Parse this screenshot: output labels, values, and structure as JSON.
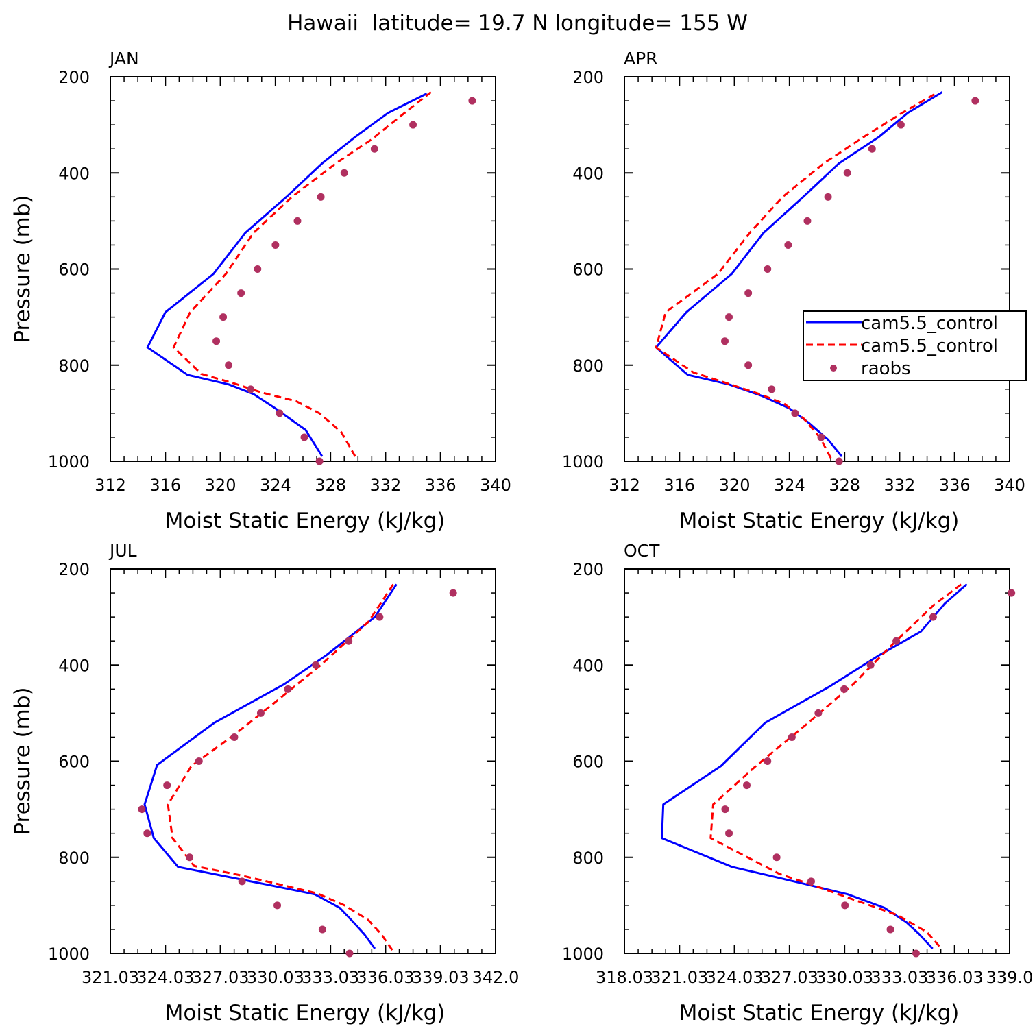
{
  "figure": {
    "title": "Hawaii  latitude= 19.7 N longitude= 155 W"
  },
  "series_styles": [
    {
      "name": "cam5.5_control",
      "color": "#0000ff",
      "style": "solid"
    },
    {
      "name": "cam5.5_control",
      "color": "#ff0000",
      "style": "dashed"
    },
    {
      "name": "raobs",
      "color": "#b03060",
      "style": "markers"
    }
  ],
  "legend": {
    "entries": [
      "cam5.5_control",
      "cam5.5_control",
      "raobs"
    ],
    "panel": "APR",
    "placement": "right-middle"
  },
  "chart_data": [
    {
      "type": "line",
      "panel_title": "JAN",
      "xlabel": "Moist Static Energy (kJ/kg)",
      "ylabel": "Pressure (mb)",
      "xlim": [
        312,
        340
      ],
      "ylim": [
        1000,
        200
      ],
      "y_reversed": true,
      "xticks": [
        312,
        316,
        320,
        324,
        328,
        332,
        336,
        340
      ],
      "xtick_labels": [
        "312",
        "316",
        "320",
        "324",
        "328",
        "332",
        "336",
        "340"
      ],
      "yticks": [
        200,
        400,
        600,
        800,
        1000
      ],
      "ytick_labels": [
        "200",
        "400",
        "600",
        "800",
        "1000"
      ],
      "grid": false,
      "series": [
        {
          "values": [
            [
              327.4,
              990
            ],
            [
              326.2,
              935
            ],
            [
              324,
              890
            ],
            [
              322.4,
              860
            ],
            [
              320.6,
              840
            ],
            [
              317.6,
              820
            ],
            [
              314.7,
              763
            ],
            [
              316,
              690
            ],
            [
              319.5,
              610
            ],
            [
              321.8,
              525
            ],
            [
              324.8,
              450
            ],
            [
              327.4,
              380
            ],
            [
              329.8,
              325
            ],
            [
              332.2,
              275
            ],
            [
              335,
              235
            ]
          ]
        },
        {
          "values": [
            [
              329.8,
              990
            ],
            [
              328.8,
              940
            ],
            [
              327.2,
              900
            ],
            [
              325.5,
              875
            ],
            [
              323,
              857
            ],
            [
              321,
              838
            ],
            [
              318.6,
              818
            ],
            [
              316.6,
              763
            ],
            [
              317.8,
              690
            ],
            [
              320.4,
              610
            ],
            [
              322.4,
              525
            ],
            [
              325.2,
              450
            ],
            [
              328.4,
              380
            ],
            [
              331,
              330
            ],
            [
              333.4,
              275
            ],
            [
              335.3,
              232
            ]
          ]
        },
        {
          "values": [
            [
              327.2,
              1000
            ],
            [
              326.1,
              950
            ],
            [
              324.3,
              900
            ],
            [
              322.2,
              850
            ],
            [
              320.6,
              800
            ],
            [
              319.7,
              750
            ],
            [
              320.2,
              700
            ],
            [
              321.5,
              650
            ],
            [
              322.7,
              600
            ],
            [
              324,
              550
            ],
            [
              325.6,
              500
            ],
            [
              327.3,
              450
            ],
            [
              329,
              400
            ],
            [
              331.2,
              350
            ],
            [
              334,
              300
            ],
            [
              338.3,
              250
            ]
          ]
        }
      ]
    },
    {
      "type": "line",
      "panel_title": "APR",
      "xlabel": "Moist Static Energy (kJ/kg)",
      "ylabel": "",
      "xlim": [
        312,
        340
      ],
      "ylim": [
        1000,
        200
      ],
      "y_reversed": true,
      "xticks": [
        312,
        316,
        320,
        324,
        328,
        332,
        336,
        340
      ],
      "xtick_labels": [
        "312",
        "316",
        "320",
        "324",
        "328",
        "332",
        "336",
        "340"
      ],
      "yticks": [
        200,
        400,
        600,
        800,
        1000
      ],
      "ytick_labels": [
        "200",
        "400",
        "600",
        "800",
        "1000"
      ],
      "grid": false,
      "series": [
        {
          "values": [
            [
              327.8,
              990
            ],
            [
              326.8,
              955
            ],
            [
              325.4,
              920
            ],
            [
              324,
              890
            ],
            [
              322,
              864
            ],
            [
              319.6,
              840
            ],
            [
              316.6,
              820
            ],
            [
              314.3,
              763
            ],
            [
              316.5,
              690
            ],
            [
              319.8,
              610
            ],
            [
              322.1,
              525
            ],
            [
              325,
              450
            ],
            [
              327.6,
              380
            ],
            [
              330.5,
              325
            ],
            [
              332.6,
              275
            ],
            [
              335.1,
              232
            ]
          ]
        },
        {
          "values": [
            [
              327,
              993
            ],
            [
              326.2,
              950
            ],
            [
              325,
              910
            ],
            [
              323.6,
              880
            ],
            [
              321.8,
              860
            ],
            [
              319.5,
              838
            ],
            [
              317,
              815
            ],
            [
              314.3,
              763
            ],
            [
              315,
              690
            ],
            [
              318.8,
              610
            ],
            [
              321.1,
              525
            ],
            [
              323.5,
              450
            ],
            [
              326.5,
              380
            ],
            [
              329.4,
              325
            ],
            [
              332.2,
              275
            ],
            [
              334.8,
              232
            ]
          ]
        },
        {
          "values": [
            [
              327.6,
              1000
            ],
            [
              326.3,
              950
            ],
            [
              324.4,
              900
            ],
            [
              322.7,
              850
            ],
            [
              321,
              800
            ],
            [
              319.3,
              750
            ],
            [
              319.6,
              700
            ],
            [
              321,
              650
            ],
            [
              322.4,
              600
            ],
            [
              323.9,
              550
            ],
            [
              325.3,
              500
            ],
            [
              326.8,
              450
            ],
            [
              328.2,
              400
            ],
            [
              330,
              350
            ],
            [
              332.1,
              300
            ],
            [
              337.5,
              250
            ]
          ]
        }
      ]
    },
    {
      "type": "line",
      "panel_title": "JUL",
      "xlabel": "Moist Static Energy (kJ/kg)",
      "ylabel": "Pressure (mb)",
      "xlim": [
        321.03,
        342.03
      ],
      "ylim": [
        1000,
        200
      ],
      "y_reversed": true,
      "xticks": [
        321.03,
        324.03,
        327.03,
        330.03,
        333.03,
        336.03,
        339.03,
        342.03
      ],
      "xtick_labels": [
        "321.03",
        "324.03",
        "327.03",
        "330.03",
        "333.03",
        "336.03",
        "339.03",
        "342.0"
      ],
      "yticks": [
        200,
        400,
        600,
        800,
        1000
      ],
      "ytick_labels": [
        "200",
        "400",
        "600",
        "800",
        "1000"
      ],
      "grid": false,
      "series": [
        {
          "values": [
            [
              335.45,
              990
            ],
            [
              334.87,
              960
            ],
            [
              334.28,
              935
            ],
            [
              333.53,
              905
            ],
            [
              332.17,
              877
            ],
            [
              329.6,
              857
            ],
            [
              324.72,
              820
            ],
            [
              323.4,
              760
            ],
            [
              322.9,
              690
            ],
            [
              323.58,
              608
            ],
            [
              326.7,
              520
            ],
            [
              330.5,
              440
            ],
            [
              332.79,
              380
            ],
            [
              335.45,
              300
            ],
            [
              336.63,
              232
            ]
          ]
        },
        {
          "values": [
            [
              336.4,
              993
            ],
            [
              335.8,
              960
            ],
            [
              335.08,
              930
            ],
            [
              333.8,
              900
            ],
            [
              332.3,
              875
            ],
            [
              330.2,
              856
            ],
            [
              328.2,
              838
            ],
            [
              325.6,
              818
            ],
            [
              324.42,
              760
            ],
            [
              324.17,
              690
            ],
            [
              325.45,
              610
            ],
            [
              327.79,
              545
            ],
            [
              329.93,
              480
            ],
            [
              332.5,
              400
            ],
            [
              335.1,
              310
            ],
            [
              336.46,
              232
            ]
          ]
        },
        {
          "values": [
            [
              334.07,
              1000
            ],
            [
              332.59,
              950
            ],
            [
              330.13,
              900
            ],
            [
              328.21,
              850
            ],
            [
              325.35,
              800
            ],
            [
              323.04,
              750
            ],
            [
              322.75,
              700
            ],
            [
              324.12,
              650
            ],
            [
              325.86,
              600
            ],
            [
              327.79,
              550
            ],
            [
              329.23,
              500
            ],
            [
              330.71,
              450
            ],
            [
              332.23,
              400
            ],
            [
              334.02,
              350
            ],
            [
              335.71,
              300
            ],
            [
              339.72,
              250
            ]
          ]
        }
      ]
    },
    {
      "type": "line",
      "panel_title": "OCT",
      "xlabel": "Moist Static Energy (kJ/kg)",
      "ylabel": "",
      "xlim": [
        318.03,
        339.03
      ],
      "ylim": [
        1000,
        200
      ],
      "y_reversed": true,
      "xticks": [
        318.03,
        321.03,
        324.03,
        327.03,
        330.03,
        333.03,
        336.03,
        339.03
      ],
      "xtick_labels": [
        "318.03",
        "321.03",
        "324.03",
        "327.03",
        "330.03",
        "333.03",
        "336.03",
        "339.0"
      ],
      "yticks": [
        200,
        400,
        600,
        800,
        1000
      ],
      "ytick_labels": [
        "200",
        "400",
        "600",
        "800",
        "1000"
      ],
      "grid": false,
      "series": [
        {
          "values": [
            [
              334.83,
              990
            ],
            [
              334.1,
              960
            ],
            [
              333.4,
              935
            ],
            [
              332.2,
              905
            ],
            [
              330.2,
              877
            ],
            [
              327.6,
              853
            ],
            [
              323.9,
              820
            ],
            [
              320.07,
              760
            ],
            [
              320.15,
              690
            ],
            [
              323.3,
              610
            ],
            [
              325.7,
              520
            ],
            [
              329.2,
              445
            ],
            [
              331.9,
              380
            ],
            [
              334.2,
              330
            ],
            [
              335.5,
              272
            ],
            [
              336.7,
              232
            ]
          ]
        },
        {
          "values": [
            [
              335.2,
              985
            ],
            [
              334.5,
              955
            ],
            [
              332.9,
              920
            ],
            [
              330.3,
              885
            ],
            [
              328.1,
              855
            ],
            [
              326.5,
              835
            ],
            [
              322.73,
              760
            ],
            [
              322.87,
              690
            ],
            [
              325.2,
              610
            ],
            [
              327.9,
              525
            ],
            [
              330.5,
              440
            ],
            [
              332.7,
              355
            ],
            [
              334.9,
              275
            ],
            [
              336.4,
              232
            ]
          ]
        },
        {
          "values": [
            [
              333.93,
              1000
            ],
            [
              332.53,
              950
            ],
            [
              330.05,
              900
            ],
            [
              328.21,
              850
            ],
            [
              326.33,
              800
            ],
            [
              323.73,
              750
            ],
            [
              323.52,
              700
            ],
            [
              324.7,
              650
            ],
            [
              325.83,
              600
            ],
            [
              327.16,
              550
            ],
            [
              328.6,
              500
            ],
            [
              330.01,
              450
            ],
            [
              331.45,
              400
            ],
            [
              332.85,
              350
            ],
            [
              334.86,
              300
            ],
            [
              339.13,
              250
            ]
          ]
        }
      ]
    }
  ]
}
